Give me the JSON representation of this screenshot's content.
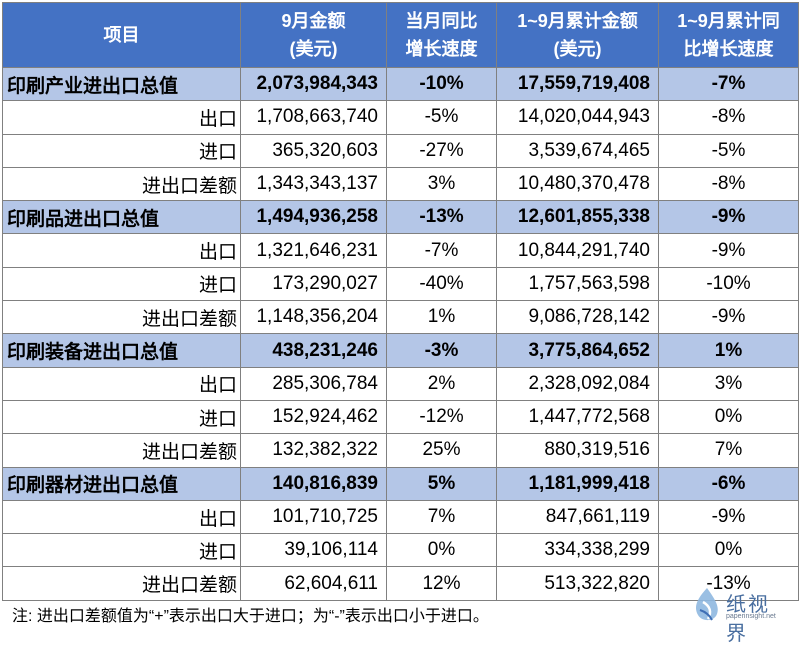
{
  "headers": [
    "项目",
    "9月金额\n(美元)",
    "当月同比\n增长速度",
    "1~9月累计金额\n(美元)",
    "1~9月累计同\n比增长速度"
  ],
  "rows": [
    {
      "total": true,
      "label": "印刷产业进出口总值",
      "sep": "2,073,984,343",
      "sep_yoy": "-10%",
      "ytd": "17,559,719,408",
      "ytd_yoy": "-7%"
    },
    {
      "total": false,
      "label": "出口",
      "sep": "1,708,663,740",
      "sep_yoy": "-5%",
      "ytd": "14,020,044,943",
      "ytd_yoy": "-8%"
    },
    {
      "total": false,
      "label": "进口",
      "sep": "365,320,603",
      "sep_yoy": "-27%",
      "ytd": "3,539,674,465",
      "ytd_yoy": "-5%"
    },
    {
      "total": false,
      "label": "进出口差额",
      "sep": "1,343,343,137",
      "sep_yoy": "3%",
      "ytd": "10,480,370,478",
      "ytd_yoy": "-8%"
    },
    {
      "total": true,
      "label": "印刷品进出口总值",
      "sep": "1,494,936,258",
      "sep_yoy": "-13%",
      "ytd": "12,601,855,338",
      "ytd_yoy": "-9%"
    },
    {
      "total": false,
      "label": "出口",
      "sep": "1,321,646,231",
      "sep_yoy": "-7%",
      "ytd": "10,844,291,740",
      "ytd_yoy": "-9%"
    },
    {
      "total": false,
      "label": "进口",
      "sep": "173,290,027",
      "sep_yoy": "-40%",
      "ytd": "1,757,563,598",
      "ytd_yoy": "-10%"
    },
    {
      "total": false,
      "label": "进出口差额",
      "sep": "1,148,356,204",
      "sep_yoy": "1%",
      "ytd": "9,086,728,142",
      "ytd_yoy": "-9%"
    },
    {
      "total": true,
      "label": "印刷装备进出口总值",
      "sep": "438,231,246",
      "sep_yoy": "-3%",
      "ytd": "3,775,864,652",
      "ytd_yoy": "1%"
    },
    {
      "total": false,
      "label": "出口",
      "sep": "285,306,784",
      "sep_yoy": "2%",
      "ytd": "2,328,092,084",
      "ytd_yoy": "3%"
    },
    {
      "total": false,
      "label": "进口",
      "sep": "152,924,462",
      "sep_yoy": "-12%",
      "ytd": "1,447,772,568",
      "ytd_yoy": "0%"
    },
    {
      "total": false,
      "label": "进出口差额",
      "sep": "132,382,322",
      "sep_yoy": "25%",
      "ytd": "880,319,516",
      "ytd_yoy": "7%"
    },
    {
      "total": true,
      "label": "印刷器材进出口总值",
      "sep": "140,816,839",
      "sep_yoy": "5%",
      "ytd": "1,181,999,418",
      "ytd_yoy": "-6%"
    },
    {
      "total": false,
      "label": "出口",
      "sep": "101,710,725",
      "sep_yoy": "7%",
      "ytd": "847,661,119",
      "ytd_yoy": "-9%"
    },
    {
      "total": false,
      "label": "进口",
      "sep": "39,106,114",
      "sep_yoy": "0%",
      "ytd": "334,338,299",
      "ytd_yoy": "0%"
    },
    {
      "total": false,
      "label": "进出口差额",
      "sep": "62,604,611",
      "sep_yoy": "12%",
      "ytd": "513,322,820",
      "ytd_yoy": "-13%"
    }
  ],
  "note": "注: 进出口差额值为“+”表示出口大于进口；为“-”表示出口小于进口。",
  "logo": {
    "text": "纸视界",
    "url": "paperinsight.net",
    "icon": "paper-insight-logo-icon",
    "color": "#4a6fa0"
  }
}
